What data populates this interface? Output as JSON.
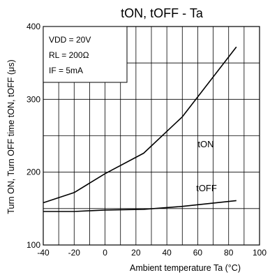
{
  "chart_data": {
    "type": "line",
    "title": "tON, tOFF - Ta",
    "xlabel": "Ambient temperature Ta (°C)",
    "ylabel": "Turn ON, Turn OFF time tON, tOFF (μs)",
    "xlim": [
      -40,
      100
    ],
    "ylim": [
      100,
      400
    ],
    "x_ticks": [
      "-40",
      "-20",
      "0",
      "20",
      "40",
      "60",
      "80",
      "100"
    ],
    "y_ticks": [
      "100",
      "200",
      "300",
      "400"
    ],
    "x_grid_step": 10,
    "y_grid_step": 50,
    "grid": true,
    "conditions": [
      "VDD = 20V",
      "RL = 200Ω",
      "IF = 5mA"
    ],
    "series": [
      {
        "name": "tON",
        "x": [
          -40,
          -20,
          0,
          25,
          50,
          85
        ],
        "y": [
          158,
          172,
          198,
          226,
          276,
          372
        ]
      },
      {
        "name": "tOFF",
        "x": [
          -40,
          -20,
          0,
          25,
          50,
          85
        ],
        "y": [
          146,
          146,
          148,
          149,
          153,
          161
        ]
      }
    ]
  }
}
